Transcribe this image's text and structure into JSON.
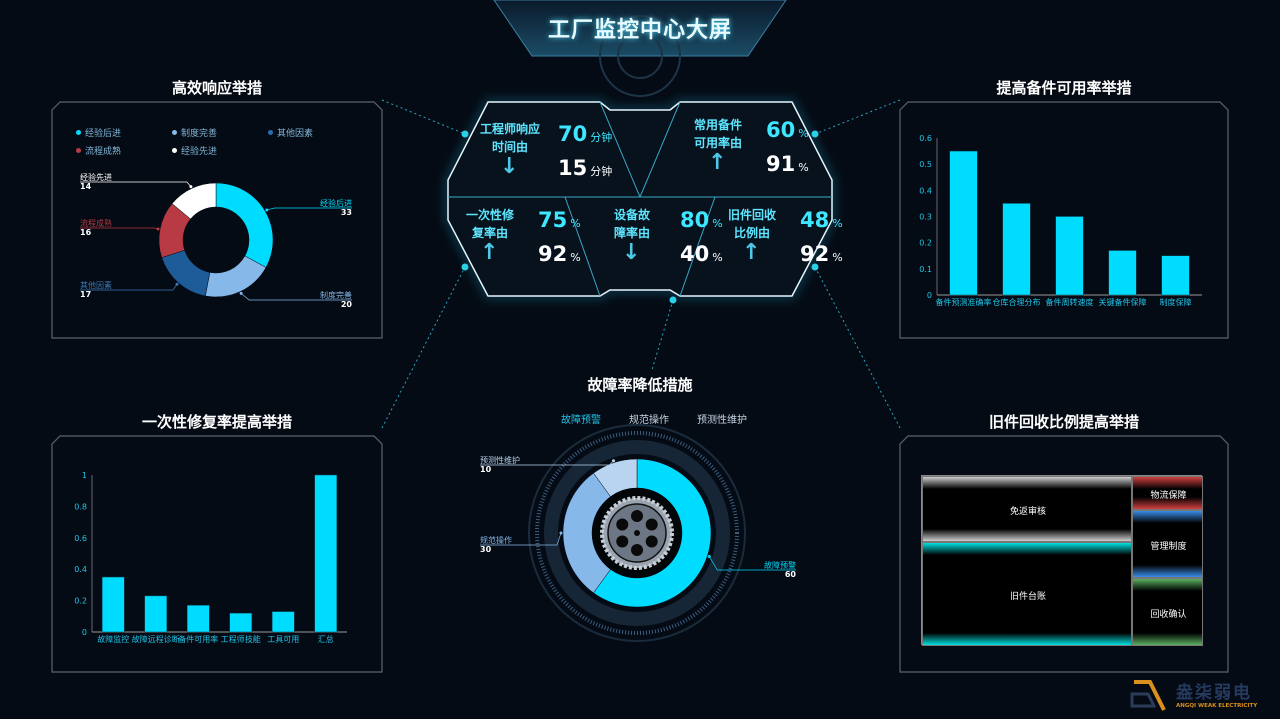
{
  "header": {
    "title": "工厂监控中心大屏"
  },
  "panels": {
    "left_top": {
      "title": "高效响应举措"
    },
    "left_bottom": {
      "title": "一次性修复率提高举措"
    },
    "right_top": {
      "title": "提高备件可用率举措"
    },
    "right_bottom": {
      "title": "旧件回收比例提高举措"
    },
    "center_bottom": {
      "title": "故障率降低措施"
    }
  },
  "kpis": [
    {
      "label1": "工程师响应",
      "label2": "时间由",
      "from": "70",
      "to": "15",
      "unit": "分钟",
      "direction": "down"
    },
    {
      "label1": "常用备件",
      "label2": "可用率由",
      "from": "60",
      "to": "91",
      "unit": "%",
      "direction": "up"
    },
    {
      "label1": "一次性修",
      "label2": "复率由",
      "from": "75",
      "to": "92",
      "unit": "%",
      "direction": "up"
    },
    {
      "label1": "设备故",
      "label2": "障率由",
      "from": "80",
      "to": "40",
      "unit": "%",
      "direction": "down"
    },
    {
      "label1": "旧件回收",
      "label2": "比例由",
      "from": "48",
      "to": "92",
      "unit": "%",
      "direction": "up"
    }
  ],
  "icons": {
    "down": "↓",
    "up": "↑"
  },
  "brand": {
    "name": "盎柒弱电",
    "sub": "ANGQI WEAK ELECTRICITY",
    "color": "#d9901c"
  },
  "chart_data": [
    {
      "id": "response",
      "type": "pie",
      "donut": true,
      "legend": [
        "经验后进",
        "制度完善",
        "其他因素",
        "流程成熟",
        "经验先进"
      ],
      "legend_placement": "top-left",
      "slices": [
        {
          "name": "经验后进",
          "value": 33,
          "color": "#00dcff"
        },
        {
          "name": "制度完善",
          "value": 20,
          "color": "#86b8ea"
        },
        {
          "name": "其他因素",
          "value": 17,
          "color": "#1d5c99"
        },
        {
          "name": "流程成熟",
          "value": 16,
          "color": "#b83a44"
        },
        {
          "name": "经验先进",
          "value": 14,
          "color": "#ffffff"
        }
      ]
    },
    {
      "id": "spare",
      "type": "bar",
      "categories": [
        "备件预测准确率",
        "仓库合理分布",
        "备件周转速度",
        "关键备件保障",
        "制度保障"
      ],
      "values": [
        0.55,
        0.35,
        0.3,
        0.17,
        0.15
      ],
      "ylim": [
        0,
        0.6
      ],
      "yticks": [
        "0",
        "0.1",
        "0.2",
        "0.3",
        "0.4",
        "0.5",
        "0.6"
      ],
      "color": "#00dcff",
      "grid": false
    },
    {
      "id": "firstfix",
      "type": "bar",
      "categories": [
        "故障监控",
        "故障远程诊断",
        "备件可用率",
        "工程师技能",
        "工具可用",
        "汇总"
      ],
      "values": [
        0.35,
        0.23,
        0.17,
        0.12,
        0.13,
        1.0
      ],
      "ylim": [
        0,
        1
      ],
      "yticks": [
        "0",
        "0.2",
        "0.4",
        "0.6",
        "0.8",
        "1"
      ],
      "color": "#00dcff",
      "grid": false
    },
    {
      "id": "failure",
      "type": "pie",
      "donut": true,
      "legend": [
        "故障预警",
        "规范操作",
        "预测性维护"
      ],
      "legend_placement": "top",
      "slices": [
        {
          "name": "故障预警",
          "value": 60,
          "color": "#00dcff"
        },
        {
          "name": "规范操作",
          "value": 30,
          "color": "#86b8ea"
        },
        {
          "name": "预测性维护",
          "value": 10,
          "color": "#b8d4f0"
        }
      ]
    },
    {
      "id": "recycle",
      "type": "heatmap",
      "subtype": "treemap",
      "tiles": [
        {
          "name": "旧件台账",
          "value": 46,
          "color": "#00e0e0"
        },
        {
          "name": "免返审核",
          "value": 29,
          "color": "#cccccc"
        },
        {
          "name": "管理制度",
          "value": 10,
          "color": "#3a8ee8"
        },
        {
          "name": "回收确认",
          "value": 10,
          "color": "#5ab060"
        },
        {
          "name": "物流保障",
          "value": 5,
          "color": "#d04040"
        }
      ]
    }
  ]
}
